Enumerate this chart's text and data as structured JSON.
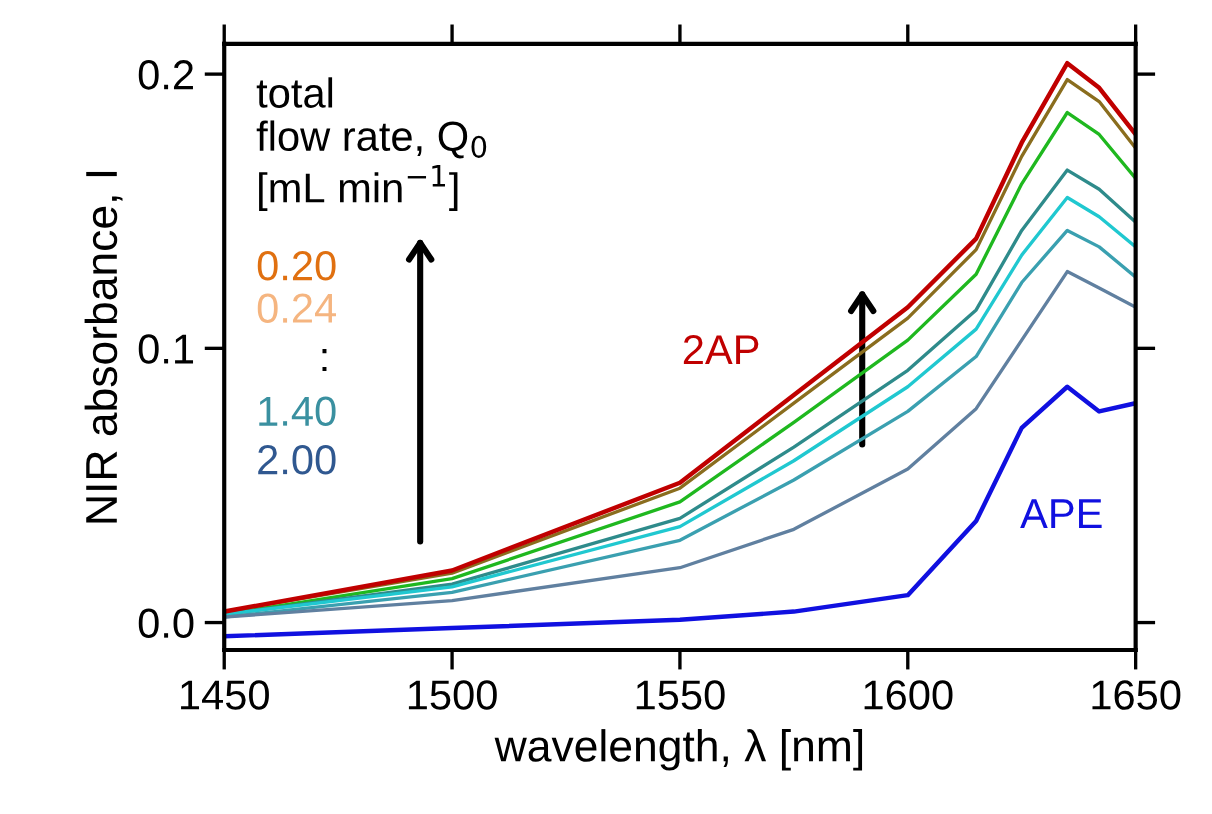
{
  "chart_data": {
    "type": "line",
    "xlabel": "wavelength, λ [nm]",
    "ylabel": "NIR absorbance, I",
    "x": [
      1450,
      1500,
      1550,
      1575,
      1600,
      1615,
      1625,
      1635,
      1642,
      1650
    ],
    "series": [
      {
        "name": "2AP",
        "color": "#c00000",
        "values": [
          0.004,
          0.019,
          0.051,
          0.083,
          0.115,
          0.14,
          0.175,
          0.204,
          0.195,
          0.178
        ]
      },
      {
        "color": "#8a6d1e",
        "values": [
          0.004,
          0.018,
          0.049,
          0.08,
          0.111,
          0.136,
          0.17,
          0.198,
          0.19,
          0.173
        ]
      },
      {
        "color": "#1fb81f",
        "values": [
          0.003,
          0.016,
          0.044,
          0.073,
          0.103,
          0.127,
          0.16,
          0.186,
          0.178,
          0.162
        ]
      },
      {
        "color": "#2e8b8b",
        "values": [
          0.003,
          0.014,
          0.038,
          0.064,
          0.092,
          0.114,
          0.143,
          0.165,
          0.158,
          0.146
        ]
      },
      {
        "color": "#20c8d0",
        "values": [
          0.003,
          0.013,
          0.035,
          0.059,
          0.086,
          0.107,
          0.134,
          0.155,
          0.148,
          0.137
        ]
      },
      {
        "color": "#3aa0b0",
        "values": [
          0.002,
          0.011,
          0.03,
          0.052,
          0.077,
          0.097,
          0.124,
          0.143,
          0.137,
          0.126
        ]
      },
      {
        "color": "#6080a0",
        "values": [
          0.002,
          0.008,
          0.02,
          0.034,
          0.056,
          0.078,
          0.103,
          0.128,
          0.122,
          0.115
        ]
      },
      {
        "name": "APE",
        "color": "#1010e0",
        "values": [
          -0.005,
          -0.002,
          0.001,
          0.004,
          0.01,
          0.037,
          0.071,
          0.086,
          0.077,
          0.08
        ]
      }
    ],
    "annotations": [
      "total\nflow rate, Q$_{0}$\n[mL min$^{−1}$]",
      "0.20",
      "0.24",
      ":",
      "1.40",
      "2.00"
    ],
    "xlim": [
      1450,
      1650
    ],
    "ylim": [
      -0.01,
      0.211
    ],
    "xticks": [
      1450,
      1500,
      1550,
      1600,
      1650
    ],
    "yticks": [
      {
        "value": 0,
        "label": "0.0"
      },
      {
        "value": 0.1,
        "label": "0.1"
      },
      {
        "value": 0.2,
        "label": "0.2"
      }
    ],
    "grid": false,
    "legend": false,
    "marker": "none",
    "line_style": "solid"
  }
}
